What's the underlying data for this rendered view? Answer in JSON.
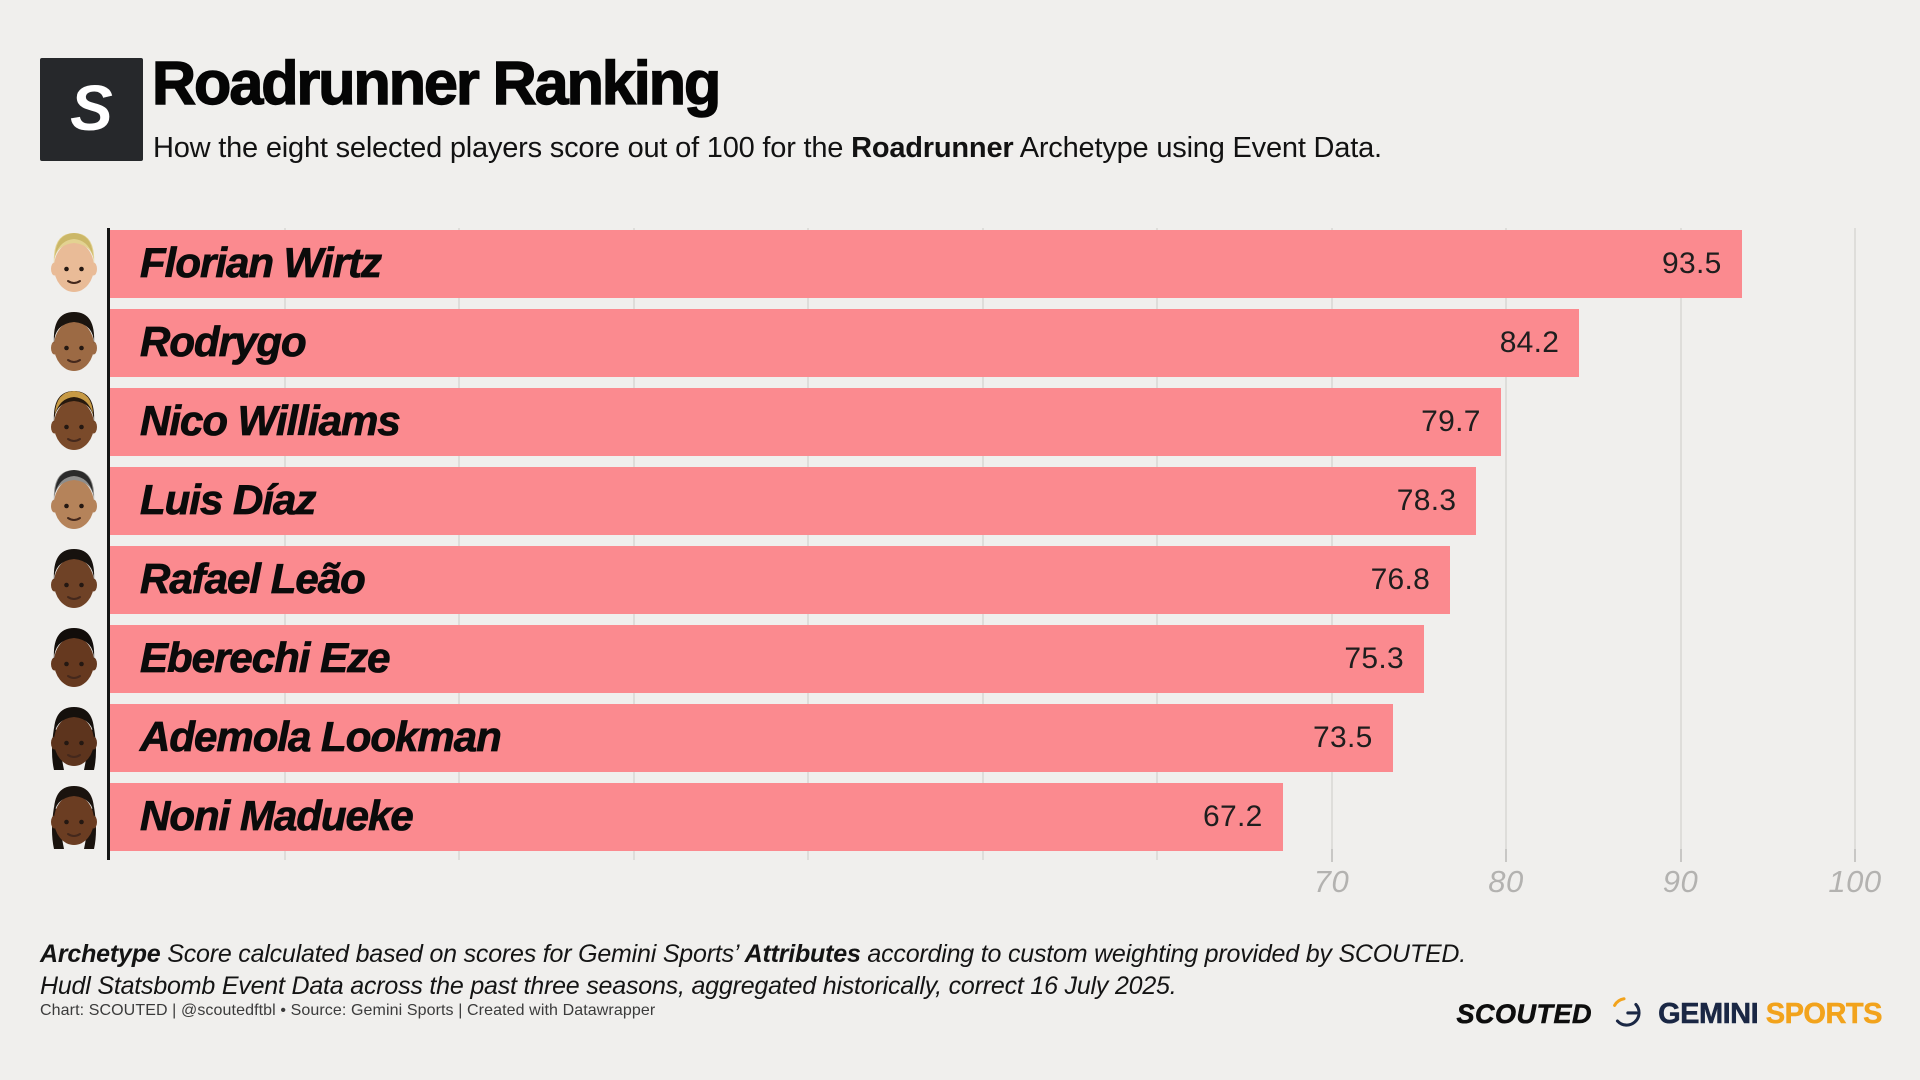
{
  "header": {
    "logo_letter": "S",
    "title": "Roadrunner Ranking",
    "subtitle_prefix": "How the eight selected players score out of 100 for the ",
    "subtitle_bold": "Roadrunner",
    "subtitle_suffix": " Archetype using Event Data."
  },
  "chart_data": {
    "type": "bar",
    "orientation": "horizontal",
    "title": "Roadrunner Ranking",
    "subtitle": "How the eight selected players score out of 100 for the Roadrunner Archetype using Event Data.",
    "categories": [
      "Florian Wirtz",
      "Rodrygo",
      "Nico Williams",
      "Luis Díaz",
      "Rafael Leão",
      "Eberechi Eze",
      "Ademola Lookman",
      "Noni Madueke"
    ],
    "values": [
      93.5,
      84.2,
      79.7,
      78.3,
      76.8,
      75.3,
      73.5,
      67.2
    ],
    "xlim": [
      0,
      100
    ],
    "gridline_values": [
      10,
      20,
      30,
      40,
      50,
      60,
      70,
      80,
      90,
      100
    ],
    "tick_labels": [
      "70",
      "80",
      "90",
      "100"
    ],
    "tick_values": [
      70,
      80,
      90,
      100
    ],
    "grid": "on",
    "bar_color": "#FB8A8F",
    "value_label_position": "inside-end"
  },
  "avatars": [
    {
      "player": "Florian Wirtz",
      "skin": "#E9BB97",
      "hair": "#E3D291",
      "tip": "#CBB768",
      "long": false
    },
    {
      "player": "Rodrygo",
      "skin": "#9C6A44",
      "hair": "#1A140F",
      "tip": null,
      "long": false
    },
    {
      "player": "Nico Williams",
      "skin": "#7A4A2A",
      "hair": "#26190E",
      "tip": "#C79A45",
      "long": false
    },
    {
      "player": "Luis Díaz",
      "skin": "#B5835A",
      "hair": "#8F8E8C",
      "tip": "#2B2B2B",
      "long": false
    },
    {
      "player": "Rafael Leão",
      "skin": "#6F4226",
      "hair": "#17120E",
      "tip": null,
      "long": false
    },
    {
      "player": "Eberechi Eze",
      "skin": "#66391F",
      "hair": "#120D0A",
      "tip": null,
      "long": false
    },
    {
      "player": "Ademola Lookman",
      "skin": "#5D341D",
      "hair": "#15100C",
      "tip": null,
      "long": true
    },
    {
      "player": "Noni Madueke",
      "skin": "#6B3D22",
      "hair": "#1A130E",
      "tip": null,
      "long": true
    }
  ],
  "footnote": {
    "line1_bold1": "Archetype",
    "line1_text1": " Score calculated based on scores for Gemini Sports’ ",
    "line1_bold2": "Attributes",
    "line1_text2": " according to custom weighting provided by SCOUTED.",
    "line2": "Hudl Statsbomb Event Data across the past three seasons, aggregated historically, correct 16 July 2025."
  },
  "attribution": "Chart: SCOUTED | @scoutedftbl • Source: Gemini Sports | Created with Datawrapper",
  "branding": {
    "scouted_wordmark": "SCOUTED",
    "gemini_primary": "GEMINI",
    "gemini_accent": "SPORTS",
    "gemini_navy": "#1A2744",
    "gemini_orange": "#F2A31C"
  }
}
